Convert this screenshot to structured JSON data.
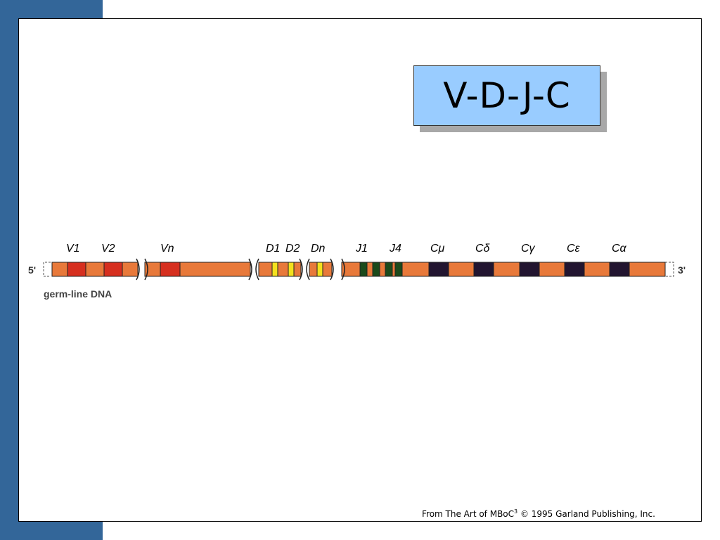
{
  "slide": {
    "title": "V-D-J-C",
    "credit_prefix": "From The Art of MBoC",
    "credit_sup": "3",
    "credit_suffix": " © 1995 Garland Publishing, Inc."
  },
  "diagram": {
    "end_5_label": "5'",
    "end_3_label": "3'",
    "caption": "germ-line DNA",
    "segment_labels": {
      "v1": "V1",
      "v2": "V2",
      "vn": "Vn",
      "d1": "D1",
      "d2": "D2",
      "dn": "Dn",
      "j1": "J1",
      "j4": "J4",
      "c_mu": "Cμ",
      "c_delta": "Cδ",
      "c_gamma": "Cγ",
      "c_epsilon": "Cε",
      "c_alpha": "Cα"
    },
    "colors": {
      "dna": "#e8793a",
      "v_segment": "#d62f1f",
      "d_segment": "#f4e11d",
      "j_segment": "#1b4a1b",
      "c_segment": "#221530",
      "outline": "#222222",
      "band": "#336699",
      "title_box": "#99ccff"
    }
  }
}
